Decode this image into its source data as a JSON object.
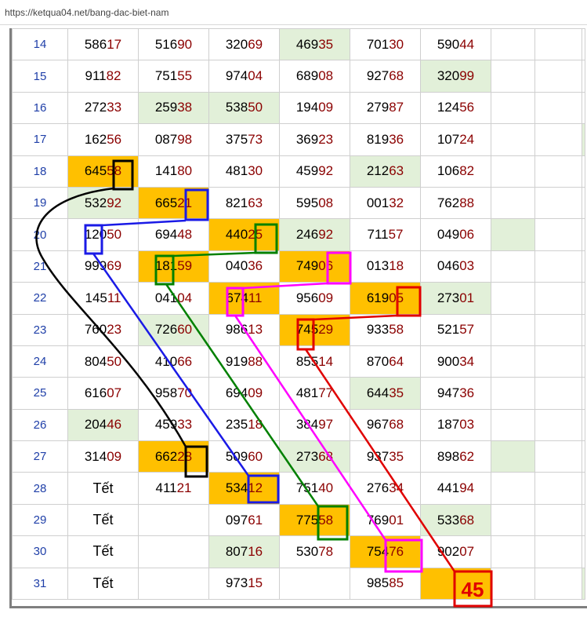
{
  "browser": {
    "url": "https://ketqua04.net/bang-dac-biet-nam"
  },
  "table": {
    "rows": [
      {
        "day": "14",
        "cells": [
          {
            "v": "58617",
            "hl": ""
          },
          {
            "v": "51690",
            "hl": ""
          },
          {
            "v": "32069",
            "hl": ""
          },
          {
            "v": "46935",
            "hl": "g"
          },
          {
            "v": "70130",
            "hl": ""
          },
          {
            "v": "59044",
            "hl": ""
          }
        ],
        "extra": [
          "",
          "",
          ""
        ]
      },
      {
        "day": "15",
        "cells": [
          {
            "v": "91182",
            "hl": ""
          },
          {
            "v": "75155",
            "hl": ""
          },
          {
            "v": "97404",
            "hl": ""
          },
          {
            "v": "68908",
            "hl": ""
          },
          {
            "v": "92768",
            "hl": ""
          },
          {
            "v": "32099",
            "hl": "g"
          }
        ],
        "extra": [
          "",
          "",
          ""
        ]
      },
      {
        "day": "16",
        "cells": [
          {
            "v": "27233",
            "hl": ""
          },
          {
            "v": "25938",
            "hl": "g"
          },
          {
            "v": "53850",
            "hl": "g"
          },
          {
            "v": "19409",
            "hl": ""
          },
          {
            "v": "27987",
            "hl": ""
          },
          {
            "v": "12456",
            "hl": ""
          }
        ],
        "extra": [
          "",
          "",
          ""
        ]
      },
      {
        "day": "17",
        "cells": [
          {
            "v": "16256",
            "hl": ""
          },
          {
            "v": "08798",
            "hl": ""
          },
          {
            "v": "37573",
            "hl": ""
          },
          {
            "v": "36923",
            "hl": ""
          },
          {
            "v": "81936",
            "hl": ""
          },
          {
            "v": "10724",
            "hl": ""
          }
        ],
        "extra": [
          "",
          "",
          "g"
        ]
      },
      {
        "day": "18",
        "cells": [
          {
            "v": "64558",
            "hl": "o"
          },
          {
            "v": "14180",
            "hl": ""
          },
          {
            "v": "48130",
            "hl": ""
          },
          {
            "v": "45992",
            "hl": ""
          },
          {
            "v": "21263",
            "hl": "g"
          },
          {
            "v": "10682",
            "hl": ""
          }
        ],
        "extra": [
          "",
          "",
          ""
        ]
      },
      {
        "day": "19",
        "cells": [
          {
            "v": "53292",
            "hl": "g"
          },
          {
            "v": "66521",
            "hl": "o"
          },
          {
            "v": "82163",
            "hl": ""
          },
          {
            "v": "59508",
            "hl": ""
          },
          {
            "v": "00132",
            "hl": ""
          },
          {
            "v": "76288",
            "hl": ""
          }
        ],
        "extra": [
          "",
          "",
          ""
        ]
      },
      {
        "day": "20",
        "cells": [
          {
            "v": "12050",
            "hl": ""
          },
          {
            "v": "69448",
            "hl": ""
          },
          {
            "v": "44025",
            "hl": "o"
          },
          {
            "v": "24692",
            "hl": "g"
          },
          {
            "v": "71157",
            "hl": ""
          },
          {
            "v": "04906",
            "hl": ""
          }
        ],
        "extra": [
          "g",
          "",
          ""
        ]
      },
      {
        "day": "21",
        "cells": [
          {
            "v": "99969",
            "hl": ""
          },
          {
            "v": "18159",
            "hl": "o"
          },
          {
            "v": "04036",
            "hl": ""
          },
          {
            "v": "74906",
            "hl": "o"
          },
          {
            "v": "01318",
            "hl": ""
          },
          {
            "v": "04603",
            "hl": ""
          }
        ],
        "extra": [
          "",
          "",
          ""
        ]
      },
      {
        "day": "22",
        "cells": [
          {
            "v": "14511",
            "hl": ""
          },
          {
            "v": "04104",
            "hl": ""
          },
          {
            "v": "67411",
            "hl": "o"
          },
          {
            "v": "95609",
            "hl": ""
          },
          {
            "v": "61905",
            "hl": "o"
          },
          {
            "v": "27301",
            "hl": "g"
          }
        ],
        "extra": [
          "",
          "",
          ""
        ]
      },
      {
        "day": "23",
        "cells": [
          {
            "v": "76023",
            "hl": ""
          },
          {
            "v": "72660",
            "hl": "g"
          },
          {
            "v": "98613",
            "hl": ""
          },
          {
            "v": "74529",
            "hl": "o"
          },
          {
            "v": "93358",
            "hl": ""
          },
          {
            "v": "52157",
            "hl": ""
          }
        ],
        "extra": [
          "",
          "",
          ""
        ]
      },
      {
        "day": "24",
        "cells": [
          {
            "v": "80450",
            "hl": ""
          },
          {
            "v": "41066",
            "hl": ""
          },
          {
            "v": "91988",
            "hl": ""
          },
          {
            "v": "85514",
            "hl": ""
          },
          {
            "v": "87064",
            "hl": ""
          },
          {
            "v": "90034",
            "hl": ""
          }
        ],
        "extra": [
          "",
          "",
          ""
        ]
      },
      {
        "day": "25",
        "cells": [
          {
            "v": "61607",
            "hl": ""
          },
          {
            "v": "95870",
            "hl": ""
          },
          {
            "v": "69409",
            "hl": ""
          },
          {
            "v": "48177",
            "hl": ""
          },
          {
            "v": "64435",
            "hl": "g"
          },
          {
            "v": "94736",
            "hl": ""
          }
        ],
        "extra": [
          "",
          "",
          ""
        ]
      },
      {
        "day": "26",
        "cells": [
          {
            "v": "20446",
            "hl": "g"
          },
          {
            "v": "45933",
            "hl": ""
          },
          {
            "v": "23518",
            "hl": ""
          },
          {
            "v": "38497",
            "hl": ""
          },
          {
            "v": "96768",
            "hl": ""
          },
          {
            "v": "18703",
            "hl": ""
          }
        ],
        "extra": [
          "",
          "",
          ""
        ]
      },
      {
        "day": "27",
        "cells": [
          {
            "v": "31409",
            "hl": ""
          },
          {
            "v": "66228",
            "hl": "o"
          },
          {
            "v": "50960",
            "hl": ""
          },
          {
            "v": "27368",
            "hl": "g"
          },
          {
            "v": "93735",
            "hl": ""
          },
          {
            "v": "89862",
            "hl": ""
          }
        ],
        "extra": [
          "g",
          "",
          ""
        ]
      },
      {
        "day": "28",
        "cells": [
          {
            "v": "Tết",
            "hl": "",
            "tet": true
          },
          {
            "v": "41121",
            "hl": ""
          },
          {
            "v": "53412",
            "hl": "o"
          },
          {
            "v": "75140",
            "hl": ""
          },
          {
            "v": "27634",
            "hl": ""
          },
          {
            "v": "44194",
            "hl": ""
          }
        ],
        "extra": [
          "",
          "",
          ""
        ]
      },
      {
        "day": "29",
        "cells": [
          {
            "v": "Tết",
            "hl": "",
            "tet": true
          },
          {
            "v": "",
            "hl": ""
          },
          {
            "v": "09761",
            "hl": ""
          },
          {
            "v": "77558",
            "hl": "o"
          },
          {
            "v": "76901",
            "hl": ""
          },
          {
            "v": "53368",
            "hl": "g"
          }
        ],
        "extra": [
          "",
          "",
          ""
        ]
      },
      {
        "day": "30",
        "cells": [
          {
            "v": "Tết",
            "hl": "",
            "tet": true
          },
          {
            "v": "",
            "hl": ""
          },
          {
            "v": "80716",
            "hl": "g"
          },
          {
            "v": "53078",
            "hl": ""
          },
          {
            "v": "75476",
            "hl": "o"
          },
          {
            "v": "90207",
            "hl": ""
          }
        ],
        "extra": [
          "",
          "",
          ""
        ]
      },
      {
        "day": "31",
        "cells": [
          {
            "v": "Tết",
            "hl": "",
            "tet": true
          },
          {
            "v": "",
            "hl": ""
          },
          {
            "v": "97315",
            "hl": ""
          },
          {
            "v": "",
            "hl": ""
          },
          {
            "v": "98585",
            "hl": ""
          },
          {
            "v": "",
            "hl": "o"
          }
        ],
        "extra": [
          "",
          "",
          "g"
        ]
      }
    ]
  },
  "annotation": {
    "prediction": "45",
    "colors": {
      "black": "#000000",
      "blue": "#1a1ae6",
      "green": "#008000",
      "magenta": "#ff00ff",
      "red": "#e00000"
    }
  },
  "colors": {
    "orange_highlight": "#ffc000",
    "green_highlight": "#e2f0d9",
    "tail_digits": "#8b0000",
    "day_numbers": "#1f3fa8"
  }
}
